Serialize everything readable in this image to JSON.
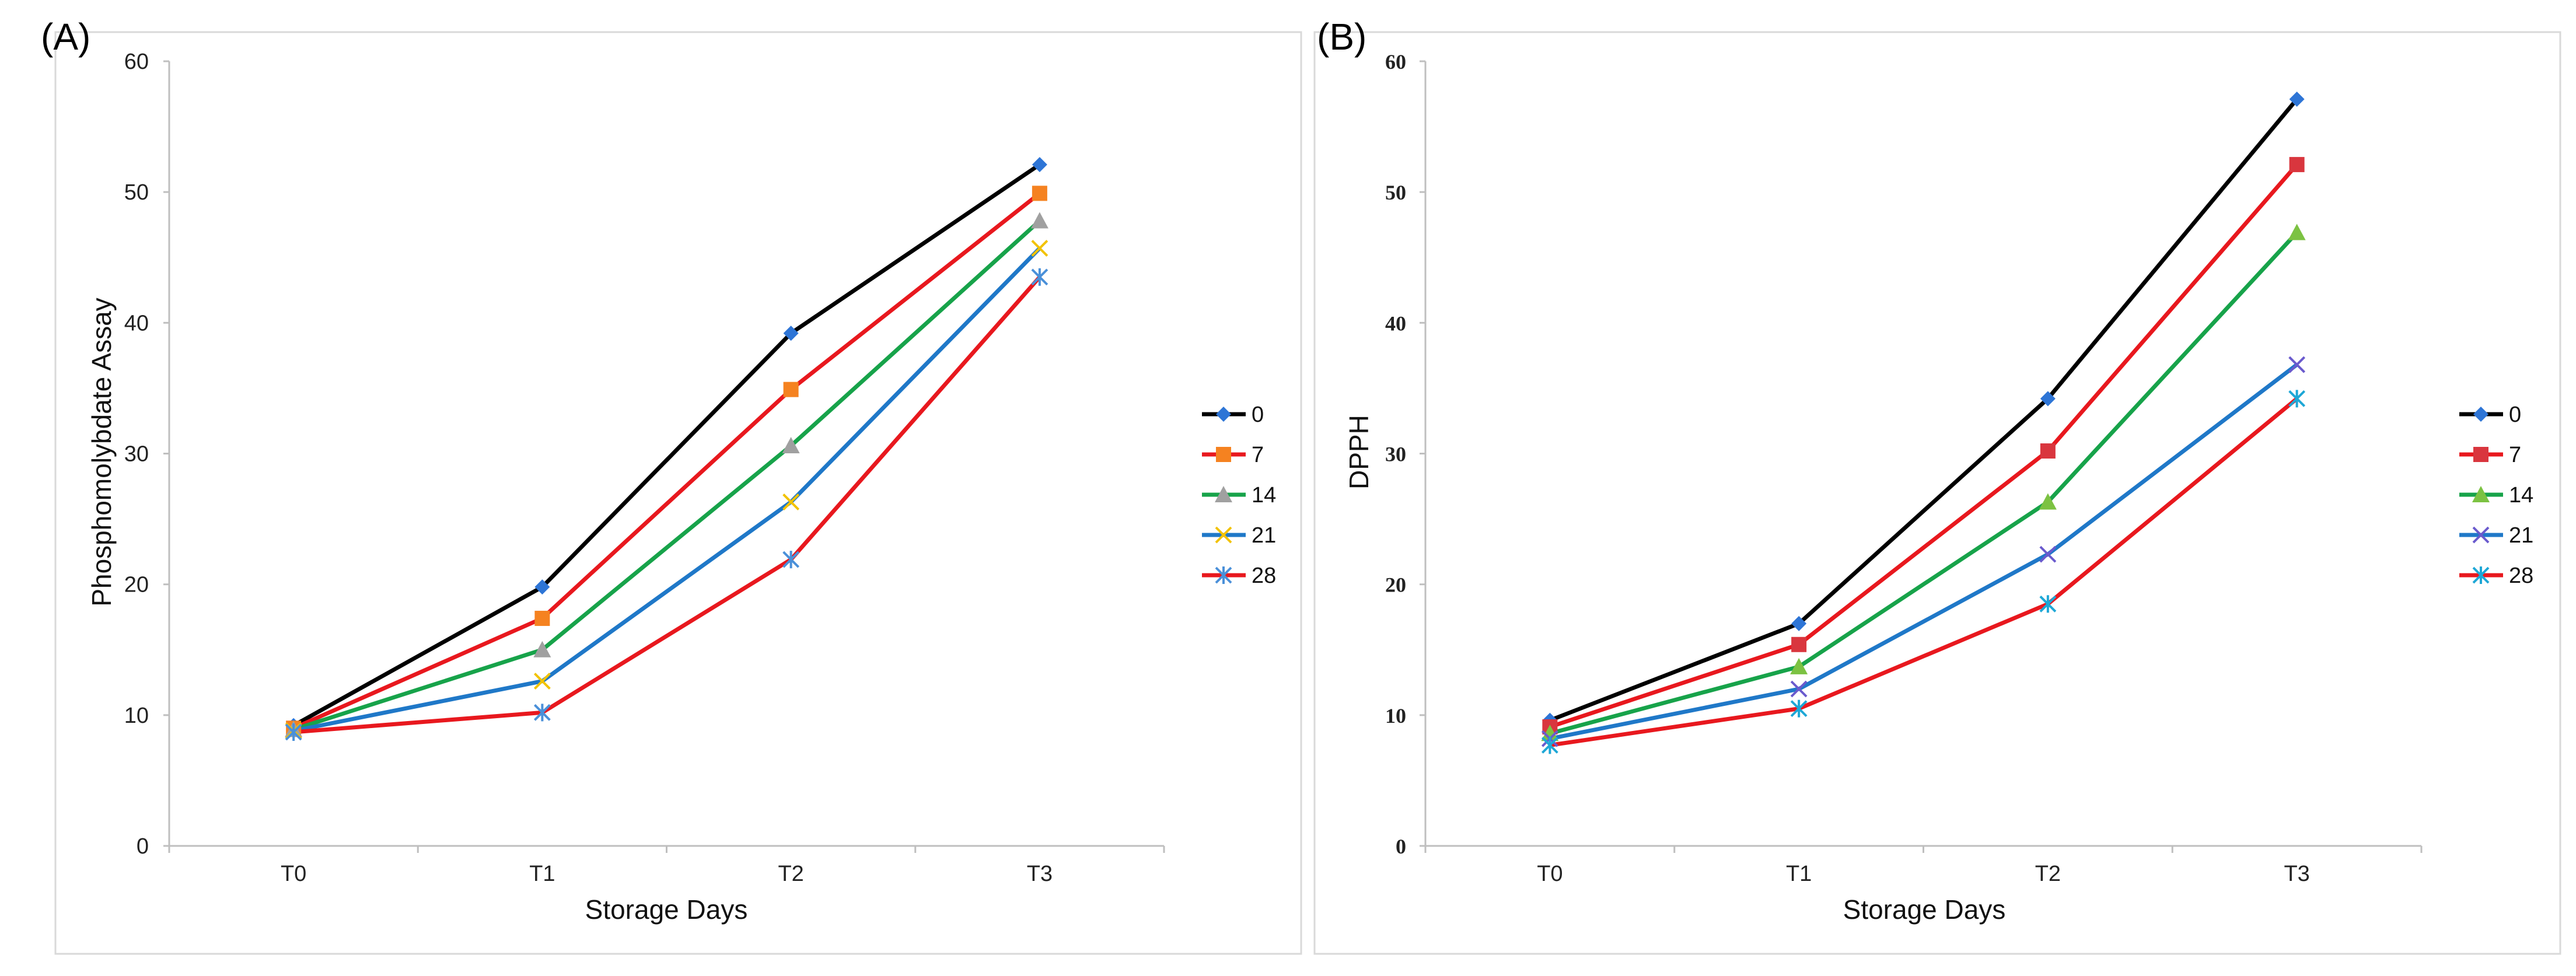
{
  "chart_data": [
    {
      "type": "line",
      "panel_label": "(A)",
      "title": "",
      "xlabel": "Storage Days",
      "ylabel": "Phosphomolybdate Assay",
      "categories": [
        "T0",
        "T1",
        "T2",
        "T3"
      ],
      "ylim": [
        0,
        60
      ],
      "yticks": [
        "0",
        "10",
        "20",
        "30",
        "40",
        "50",
        "60"
      ],
      "legend_position": "right",
      "series": [
        {
          "name": "0",
          "values": [
            9.2,
            19.8,
            39.2,
            52.1
          ],
          "color": "#000000",
          "marker": "diamond",
          "marker_color": "#2E75D6"
        },
        {
          "name": "7",
          "values": [
            9.0,
            17.4,
            34.9,
            49.9
          ],
          "color": "#E8181E",
          "marker": "square",
          "marker_color": "#F58220"
        },
        {
          "name": "14",
          "values": [
            8.9,
            15.0,
            30.6,
            47.8
          ],
          "color": "#17A34A",
          "marker": "triangle",
          "marker_color": "#A0A0A0"
        },
        {
          "name": "21",
          "values": [
            8.8,
            12.6,
            26.3,
            45.7
          ],
          "color": "#1F78C8",
          "marker": "x",
          "marker_color": "#F2C200"
        },
        {
          "name": "28",
          "values": [
            8.7,
            10.2,
            21.9,
            43.5
          ],
          "color": "#E8181E",
          "marker": "star",
          "marker_color": "#4A90D9"
        }
      ]
    },
    {
      "type": "line",
      "panel_label": "(B)",
      "title": "",
      "xlabel": "Storage Days",
      "ylabel": "DPPH",
      "categories": [
        "T0",
        "T1",
        "T2",
        "T3"
      ],
      "ylim": [
        0,
        60
      ],
      "yticks": [
        "0",
        "10",
        "20",
        "30",
        "40",
        "50",
        "60"
      ],
      "legend_position": "right",
      "series": [
        {
          "name": "0",
          "values": [
            9.6,
            17.0,
            34.2,
            57.1
          ],
          "color": "#000000",
          "marker": "diamond",
          "marker_color": "#2E75D6"
        },
        {
          "name": "7",
          "values": [
            9.1,
            15.4,
            30.2,
            52.1
          ],
          "color": "#E8181E",
          "marker": "square",
          "marker_color": "#D9363E"
        },
        {
          "name": "14",
          "values": [
            8.6,
            13.7,
            26.3,
            46.9
          ],
          "color": "#17A34A",
          "marker": "triangle",
          "marker_color": "#7CC242"
        },
        {
          "name": "21",
          "values": [
            8.2,
            12.0,
            22.3,
            36.8
          ],
          "color": "#1F78C8",
          "marker": "x",
          "marker_color": "#6A5ACD"
        },
        {
          "name": "28",
          "values": [
            7.7,
            10.5,
            18.5,
            34.2
          ],
          "color": "#E8181E",
          "marker": "star",
          "marker_color": "#1EA7D6"
        }
      ]
    }
  ]
}
